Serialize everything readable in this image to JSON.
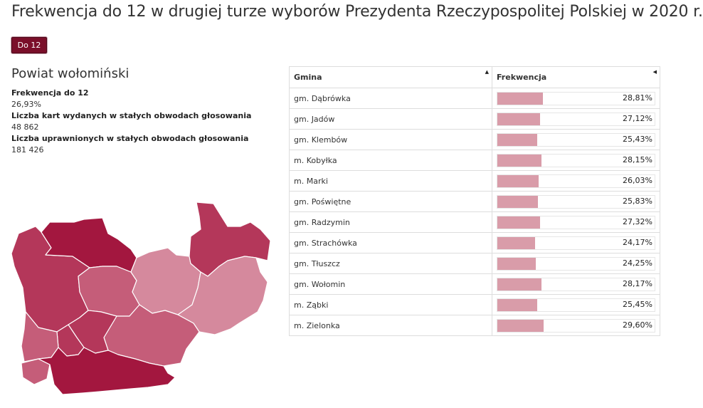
{
  "page": {
    "title": "Frekwencja do 12 w drugiej turze wyborów Prezydenta Rzeczypospolitej Polskiej w 2020 r."
  },
  "time_filter": {
    "label": "Do 12"
  },
  "region": {
    "name": "Powiat wołomiński",
    "stats": [
      {
        "label": "Frekwencja do 12",
        "value": "26,93%"
      },
      {
        "label": "Liczba kart wydanych w stałych obwodach głosowania",
        "value": "48 862"
      },
      {
        "label": "Liczba uprawnionych w stałych obwodach głosowania",
        "value": "181 426"
      }
    ]
  },
  "table": {
    "headers": {
      "gmina": "Gmina",
      "frekwencja": "Frekwencja"
    },
    "scale_max_percent": 100,
    "rows": [
      {
        "gmina": "gm. Dąbrówka",
        "value": 28.81,
        "label": "28,81%"
      },
      {
        "gmina": "gm. Jadów",
        "value": 27.12,
        "label": "27,12%"
      },
      {
        "gmina": "gm. Klembów",
        "value": 25.43,
        "label": "25,43%"
      },
      {
        "gmina": "m. Kobyłka",
        "value": 28.15,
        "label": "28,15%"
      },
      {
        "gmina": "m. Marki",
        "value": 26.03,
        "label": "26,03%"
      },
      {
        "gmina": "gm. Poświętne",
        "value": 25.83,
        "label": "25,83%"
      },
      {
        "gmina": "gm. Radzymin",
        "value": 27.32,
        "label": "27,32%"
      },
      {
        "gmina": "gm. Strachówka",
        "value": 24.17,
        "label": "24,17%"
      },
      {
        "gmina": "gm. Tłuszcz",
        "value": 24.25,
        "label": "24,25%"
      },
      {
        "gmina": "gm. Wołomin",
        "value": 28.17,
        "label": "28,17%"
      },
      {
        "gmina": "m. Ząbki",
        "value": 25.45,
        "label": "25,45%"
      },
      {
        "gmina": "m. Zielonka",
        "value": 29.6,
        "label": "29,60%"
      }
    ]
  },
  "colors": {
    "button": "#7a0f2a",
    "bar": "#d99ca9",
    "map_shades": [
      "#a3173f",
      "#b4375a",
      "#c55d79",
      "#d5899d"
    ]
  }
}
